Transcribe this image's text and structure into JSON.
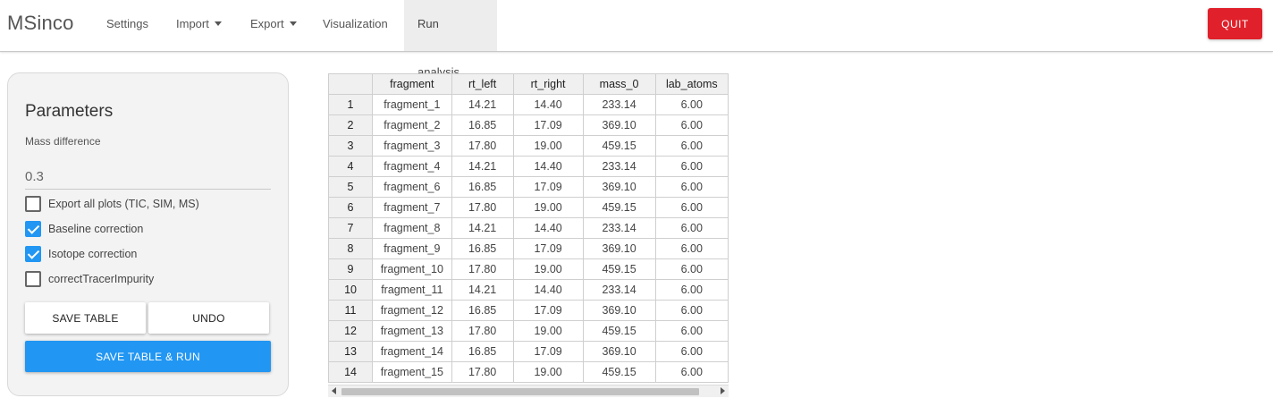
{
  "app": {
    "title": "MSinco"
  },
  "nav": {
    "settings": "Settings",
    "import": "Import",
    "export": "Export",
    "visualization": "Visualization",
    "run_analysis": "Run analysis",
    "quit": "QUIT"
  },
  "parameters": {
    "title": "Parameters",
    "mass_difference_label": "Mass difference",
    "mass_difference_value": "0.3",
    "checkboxes": [
      {
        "label": "Export all plots (TIC, SIM, MS)",
        "checked": false
      },
      {
        "label": "Baseline correction",
        "checked": true
      },
      {
        "label": "Isotope correction",
        "checked": true
      },
      {
        "label": "correctTracerImpurity",
        "checked": false
      }
    ],
    "save_table": "SAVE TABLE",
    "undo": "UNDO",
    "save_table_run": "SAVE TABLE & RUN"
  },
  "table": {
    "columns": [
      "fragment",
      "rt_left",
      "rt_right",
      "mass_0",
      "lab_atoms"
    ],
    "rows": [
      [
        "1",
        "fragment_1",
        "14.21",
        "14.40",
        "233.14",
        "6.00"
      ],
      [
        "2",
        "fragment_2",
        "16.85",
        "17.09",
        "369.10",
        "6.00"
      ],
      [
        "3",
        "fragment_3",
        "17.80",
        "19.00",
        "459.15",
        "6.00"
      ],
      [
        "4",
        "fragment_4",
        "14.21",
        "14.40",
        "233.14",
        "6.00"
      ],
      [
        "5",
        "fragment_6",
        "16.85",
        "17.09",
        "369.10",
        "6.00"
      ],
      [
        "6",
        "fragment_7",
        "17.80",
        "19.00",
        "459.15",
        "6.00"
      ],
      [
        "7",
        "fragment_8",
        "14.21",
        "14.40",
        "233.14",
        "6.00"
      ],
      [
        "8",
        "fragment_9",
        "16.85",
        "17.09",
        "369.10",
        "6.00"
      ],
      [
        "9",
        "fragment_10",
        "17.80",
        "19.00",
        "459.15",
        "6.00"
      ],
      [
        "10",
        "fragment_11",
        "14.21",
        "14.40",
        "233.14",
        "6.00"
      ],
      [
        "11",
        "fragment_12",
        "16.85",
        "17.09",
        "369.10",
        "6.00"
      ],
      [
        "12",
        "fragment_13",
        "17.80",
        "19.00",
        "459.15",
        "6.00"
      ],
      [
        "13",
        "fragment_14",
        "16.85",
        "17.09",
        "369.10",
        "6.00"
      ],
      [
        "14",
        "fragment_15",
        "17.80",
        "19.00",
        "459.15",
        "6.00"
      ]
    ]
  },
  "colors": {
    "quit": "#e0202a",
    "primary": "#2196f3",
    "active_tab": "#ededed"
  }
}
